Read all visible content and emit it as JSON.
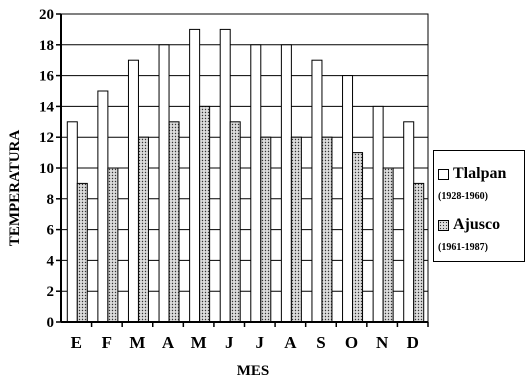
{
  "chart_data": {
    "type": "bar",
    "categories": [
      "E",
      "F",
      "M",
      "A",
      "M",
      "J",
      "J",
      "A",
      "S",
      "O",
      "N",
      "D"
    ],
    "series": [
      {
        "name": "Tlalpan",
        "period": "(1928-1960)",
        "values": [
          13,
          15,
          17,
          18,
          19,
          19,
          18,
          18,
          17,
          16,
          14,
          13
        ]
      },
      {
        "name": "Ajusco",
        "period": "(1961-1987)",
        "values": [
          9,
          10,
          12,
          13,
          14,
          13,
          12,
          12,
          12,
          11,
          10,
          9
        ]
      }
    ],
    "title": "",
    "xlabel": "MES",
    "ylabel": "TEMPERATURA",
    "ylim": [
      0,
      20
    ],
    "yticks": [
      0,
      2,
      4,
      6,
      8,
      10,
      12,
      14,
      16,
      18,
      20
    ],
    "grid": true,
    "legend_position": "right",
    "colors": {
      "Tlalpan": "#ffffff",
      "Ajusco": "#d8d8d8",
      "stroke": "#000000"
    }
  }
}
